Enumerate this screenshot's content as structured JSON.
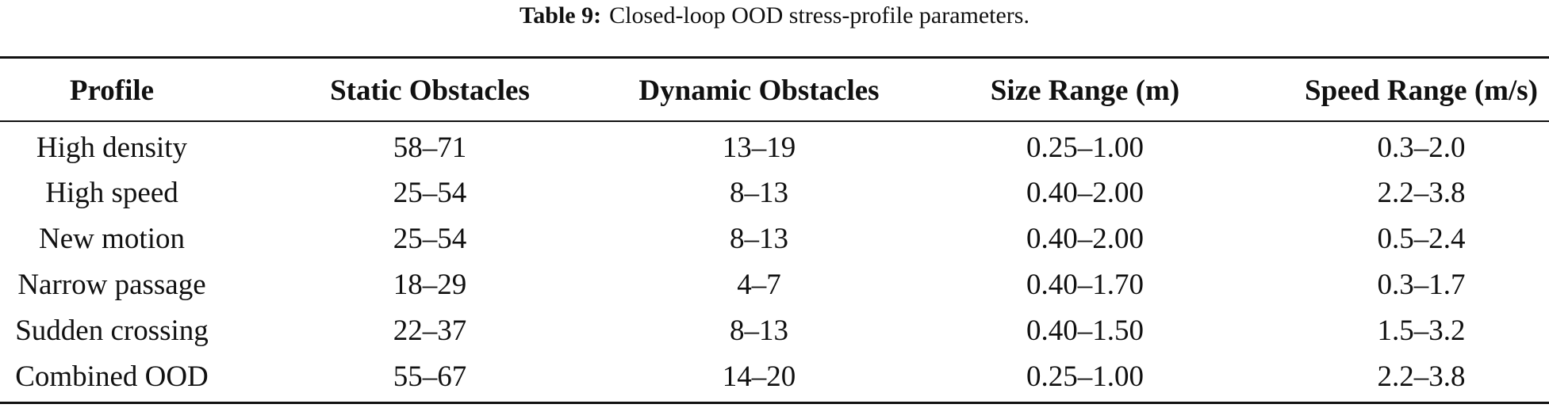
{
  "caption": {
    "label": "Table 9:",
    "text": "Closed-loop OOD stress-profile parameters."
  },
  "table": {
    "headers": [
      "Profile",
      "Static Obstacles",
      "Dynamic Obstacles",
      "Size Range (m)",
      "Speed Range (m/s)"
    ],
    "rows": [
      [
        "High density",
        "58–71",
        "13–19",
        "0.25–1.00",
        "0.3–2.0"
      ],
      [
        "High speed",
        "25–54",
        "8–13",
        "0.40–2.00",
        "2.2–3.8"
      ],
      [
        "New motion",
        "25–54",
        "8–13",
        "0.40–2.00",
        "0.5–2.4"
      ],
      [
        "Narrow passage",
        "18–29",
        "4–7",
        "0.40–1.70",
        "0.3–1.7"
      ],
      [
        "Sudden crossing",
        "22–37",
        "8–13",
        "0.40–1.50",
        "1.5–3.2"
      ],
      [
        "Combined OOD",
        "55–67",
        "14–20",
        "0.25–1.00",
        "2.2–3.8"
      ]
    ]
  }
}
